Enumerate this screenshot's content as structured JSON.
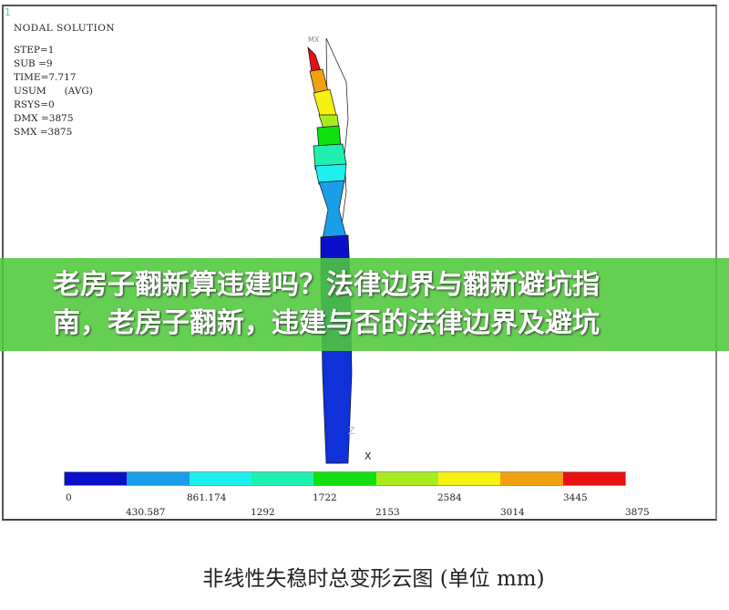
{
  "plot": {
    "window_number": "1",
    "title": "NODAL SOLUTION",
    "info_lines": [
      "STEP=1",
      "SUB =9",
      "TIME=7.717",
      "USUM      (AVG)",
      "RSYS=0",
      "DMX =3875",
      "SMX =3875"
    ],
    "mx_label": "MX",
    "axis_z": "Z",
    "axis_x": "X"
  },
  "legend": {
    "colors": [
      "#0a10c8",
      "#1a9ee8",
      "#1ef0f0",
      "#1ef0b0",
      "#10e010",
      "#a8ec20",
      "#f8f010",
      "#f0a010",
      "#e81010"
    ],
    "ticks_upper": [
      "0",
      "861.174",
      "1722",
      "2584",
      "3445"
    ],
    "ticks_lower": [
      "430.587",
      "1292",
      "2153",
      "3014",
      "3875"
    ]
  },
  "banner": {
    "line1": "老房子翻新算违建吗？法律边界与翻新避坑指",
    "line2": "南，老房子翻新，违建与否的法律边界及避坑"
  },
  "caption": "非线性失稳时总变形云图 (单位 mm)"
}
